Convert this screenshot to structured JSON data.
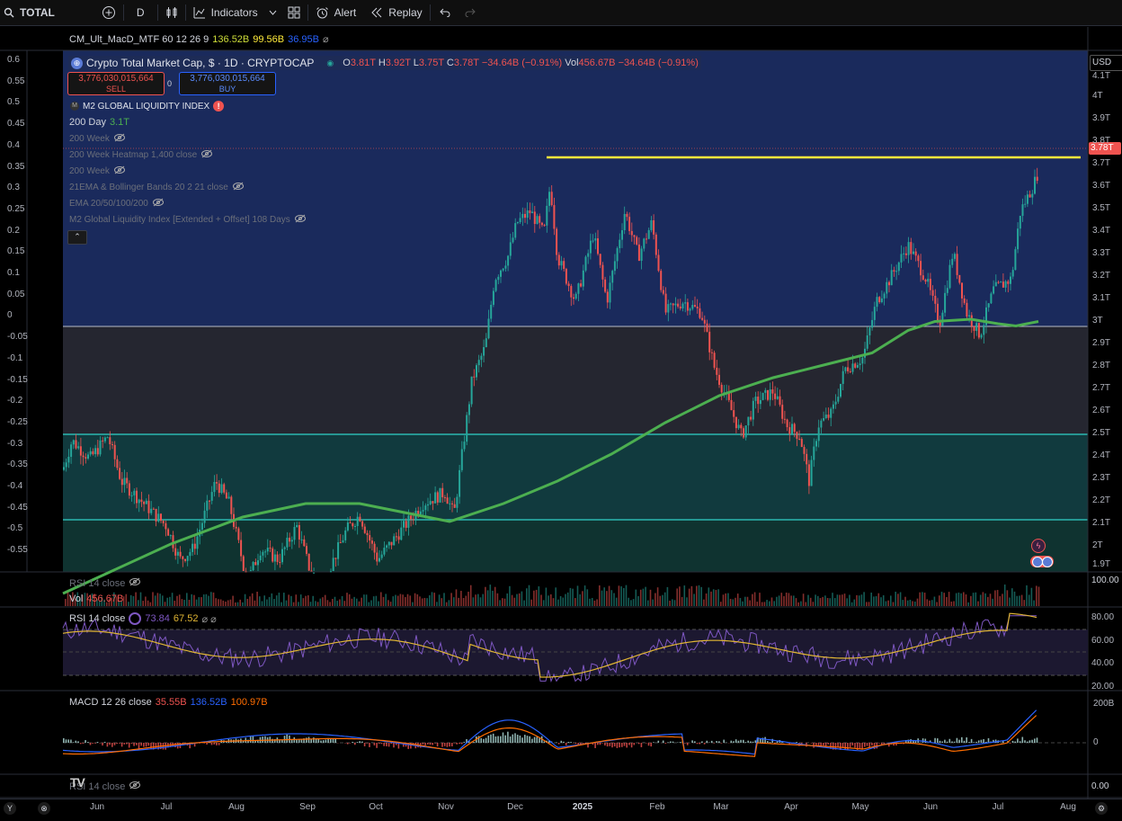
{
  "toolbar": {
    "symbol": "TOTAL",
    "interval": "D",
    "indicators_label": "Indicators",
    "alert_label": "Alert",
    "replay_label": "Replay"
  },
  "main_legend": {
    "macd_mtf": {
      "name": "CM_Ult_MacD_MTF 60 12 26 9",
      "v1": "136.52B",
      "v2": "99.56B",
      "v3": "36.95B"
    },
    "title": "Crypto Total Market Cap, $ · 1D · CRYPTOCAP",
    "ohlc": {
      "o_label": "O",
      "o": "3.81T",
      "h_label": "H",
      "h": "3.92T",
      "l_label": "L",
      "l": "3.75T",
      "c_label": "C",
      "c": "3.78T",
      "chg": "−34.64B (−0.91%)",
      "vol_label": "Vol",
      "vol": "456.67B",
      "vol_chg": "−34.64B (−0.91%)"
    },
    "sell_price": "3,776,030,015,664",
    "sell_label": "SELL",
    "spread": "0",
    "buy_price": "3,776,030,015,664",
    "buy_label": "BUY",
    "m2_label": "M2 GLOBAL LIQUIDITY INDEX",
    "day200_label": "200 Day",
    "day200_value": "3.1T",
    "indicators": [
      "200 Week",
      "200 Week Heatmap 1,400 close",
      "200 Week",
      "21EMA & Bollinger Bands 20 2 21 close",
      "EMA 20/50/100/200",
      "M2 Global Liquidity Index [Extended + Offset] 108 Days"
    ]
  },
  "left_axis": [
    "0.6",
    "0.55",
    "0.5",
    "0.45",
    "0.4",
    "0.35",
    "0.3",
    "0.25",
    "0.2",
    "0.15",
    "0.1",
    "0.05",
    "0",
    "-0.05",
    "-0.1",
    "-0.15",
    "-0.2",
    "-0.25",
    "-0.3",
    "-0.35",
    "-0.4",
    "-0.45",
    "-0.5",
    "-0.55"
  ],
  "right_axis": {
    "currency": "USD",
    "labels": [
      "4.1T",
      "4T",
      "3.9T",
      "3.8T",
      "3.7T",
      "3.6T",
      "3.5T",
      "3.4T",
      "3.3T",
      "3.2T",
      "3.1T",
      "3T",
      "2.9T",
      "2.8T",
      "2.7T",
      "2.6T",
      "2.5T",
      "2.4T",
      "2.3T",
      "2.2T",
      "2.1T",
      "2T",
      "1.9T"
    ],
    "last_price": "3.78T"
  },
  "volume_pane": {
    "rsi_label": "RSI 14 close",
    "vol_label": "Vol",
    "vol_value": "456.67B",
    "axis": "100.00"
  },
  "rsi_pane": {
    "label": "RSI 14 close",
    "v1": "73.84",
    "v2": "67.52",
    "axis": [
      "80.00",
      "60.00",
      "40.00",
      "20.00"
    ]
  },
  "macd_pane": {
    "label": "MACD 12 26 close",
    "v1": "35.55B",
    "v2": "136.52B",
    "v3": "100.97B",
    "axis": [
      "200B",
      "0"
    ]
  },
  "bottom_pane": {
    "label": "RSI 14 close",
    "axis": "0.00"
  },
  "x_axis": [
    "Jun",
    "Jul",
    "Aug",
    "Sep",
    "Oct",
    "Nov",
    "Dec",
    "2025",
    "Feb",
    "Mar",
    "Apr",
    "May",
    "Jun",
    "Jul",
    "Aug"
  ],
  "colors": {
    "up": "#26a69a",
    "down": "#ef5350",
    "sma200": "#4caf50",
    "resistance": "#ffeb3b",
    "rsi": "#7e57c2",
    "rsi_ma": "#e0b534",
    "macd": "#2962ff",
    "signal": "#ff6d00"
  },
  "chart_data": {
    "type": "candlestick",
    "title": "Crypto Total Market Cap, $ · 1D · CRYPTOCAP",
    "ylim": [
      1.9,
      4.15
    ],
    "x": [
      "Jun",
      "Jul",
      "Aug",
      "Sep",
      "Oct",
      "Nov",
      "Dec",
      "2025",
      "Feb",
      "Mar",
      "Apr",
      "May",
      "Jun",
      "Jul",
      "Aug"
    ],
    "close_approx": [
      2.4,
      2.25,
      2.05,
      2.0,
      2.25,
      2.4,
      3.55,
      3.3,
      3.6,
      2.7,
      2.55,
      2.95,
      3.3,
      3.2,
      3.78
    ],
    "sma200_approx": [
      1.9,
      2.1,
      2.22,
      2.28,
      2.27,
      2.22,
      2.35,
      2.5,
      2.65,
      2.8,
      2.9,
      2.98,
      3.1,
      3.12,
      3.12
    ],
    "resistance": 3.73,
    "levels": [
      3.0,
      2.5,
      2.12
    ]
  }
}
